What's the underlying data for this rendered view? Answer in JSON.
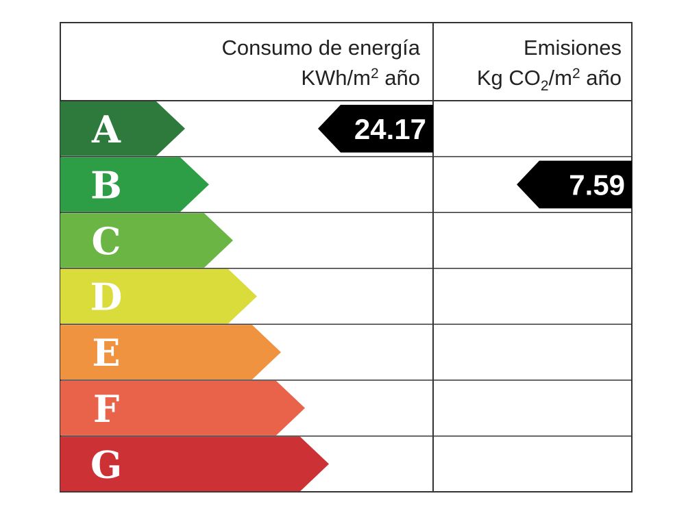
{
  "header": {
    "consumption": {
      "line1": "Consumo de energía",
      "line2": [
        "KWh/m",
        "2",
        " año"
      ]
    },
    "emissions": {
      "line1": "Emisiones",
      "line2": [
        "Kg CO",
        "2",
        "/m",
        "2",
        " año"
      ]
    }
  },
  "ratings": [
    {
      "letter": "A",
      "color": "#2e7a3c"
    },
    {
      "letter": "B",
      "color": "#2e9e46"
    },
    {
      "letter": "C",
      "color": "#6ab544"
    },
    {
      "letter": "D",
      "color": "#d9dc3a"
    },
    {
      "letter": "E",
      "color": "#ef9340"
    },
    {
      "letter": "F",
      "color": "#e8634a"
    },
    {
      "letter": "G",
      "color": "#cc3135"
    }
  ],
  "consumption": {
    "rating": "A",
    "value": 24.17
  },
  "emissions": {
    "rating": "B",
    "value": 7.59
  }
}
